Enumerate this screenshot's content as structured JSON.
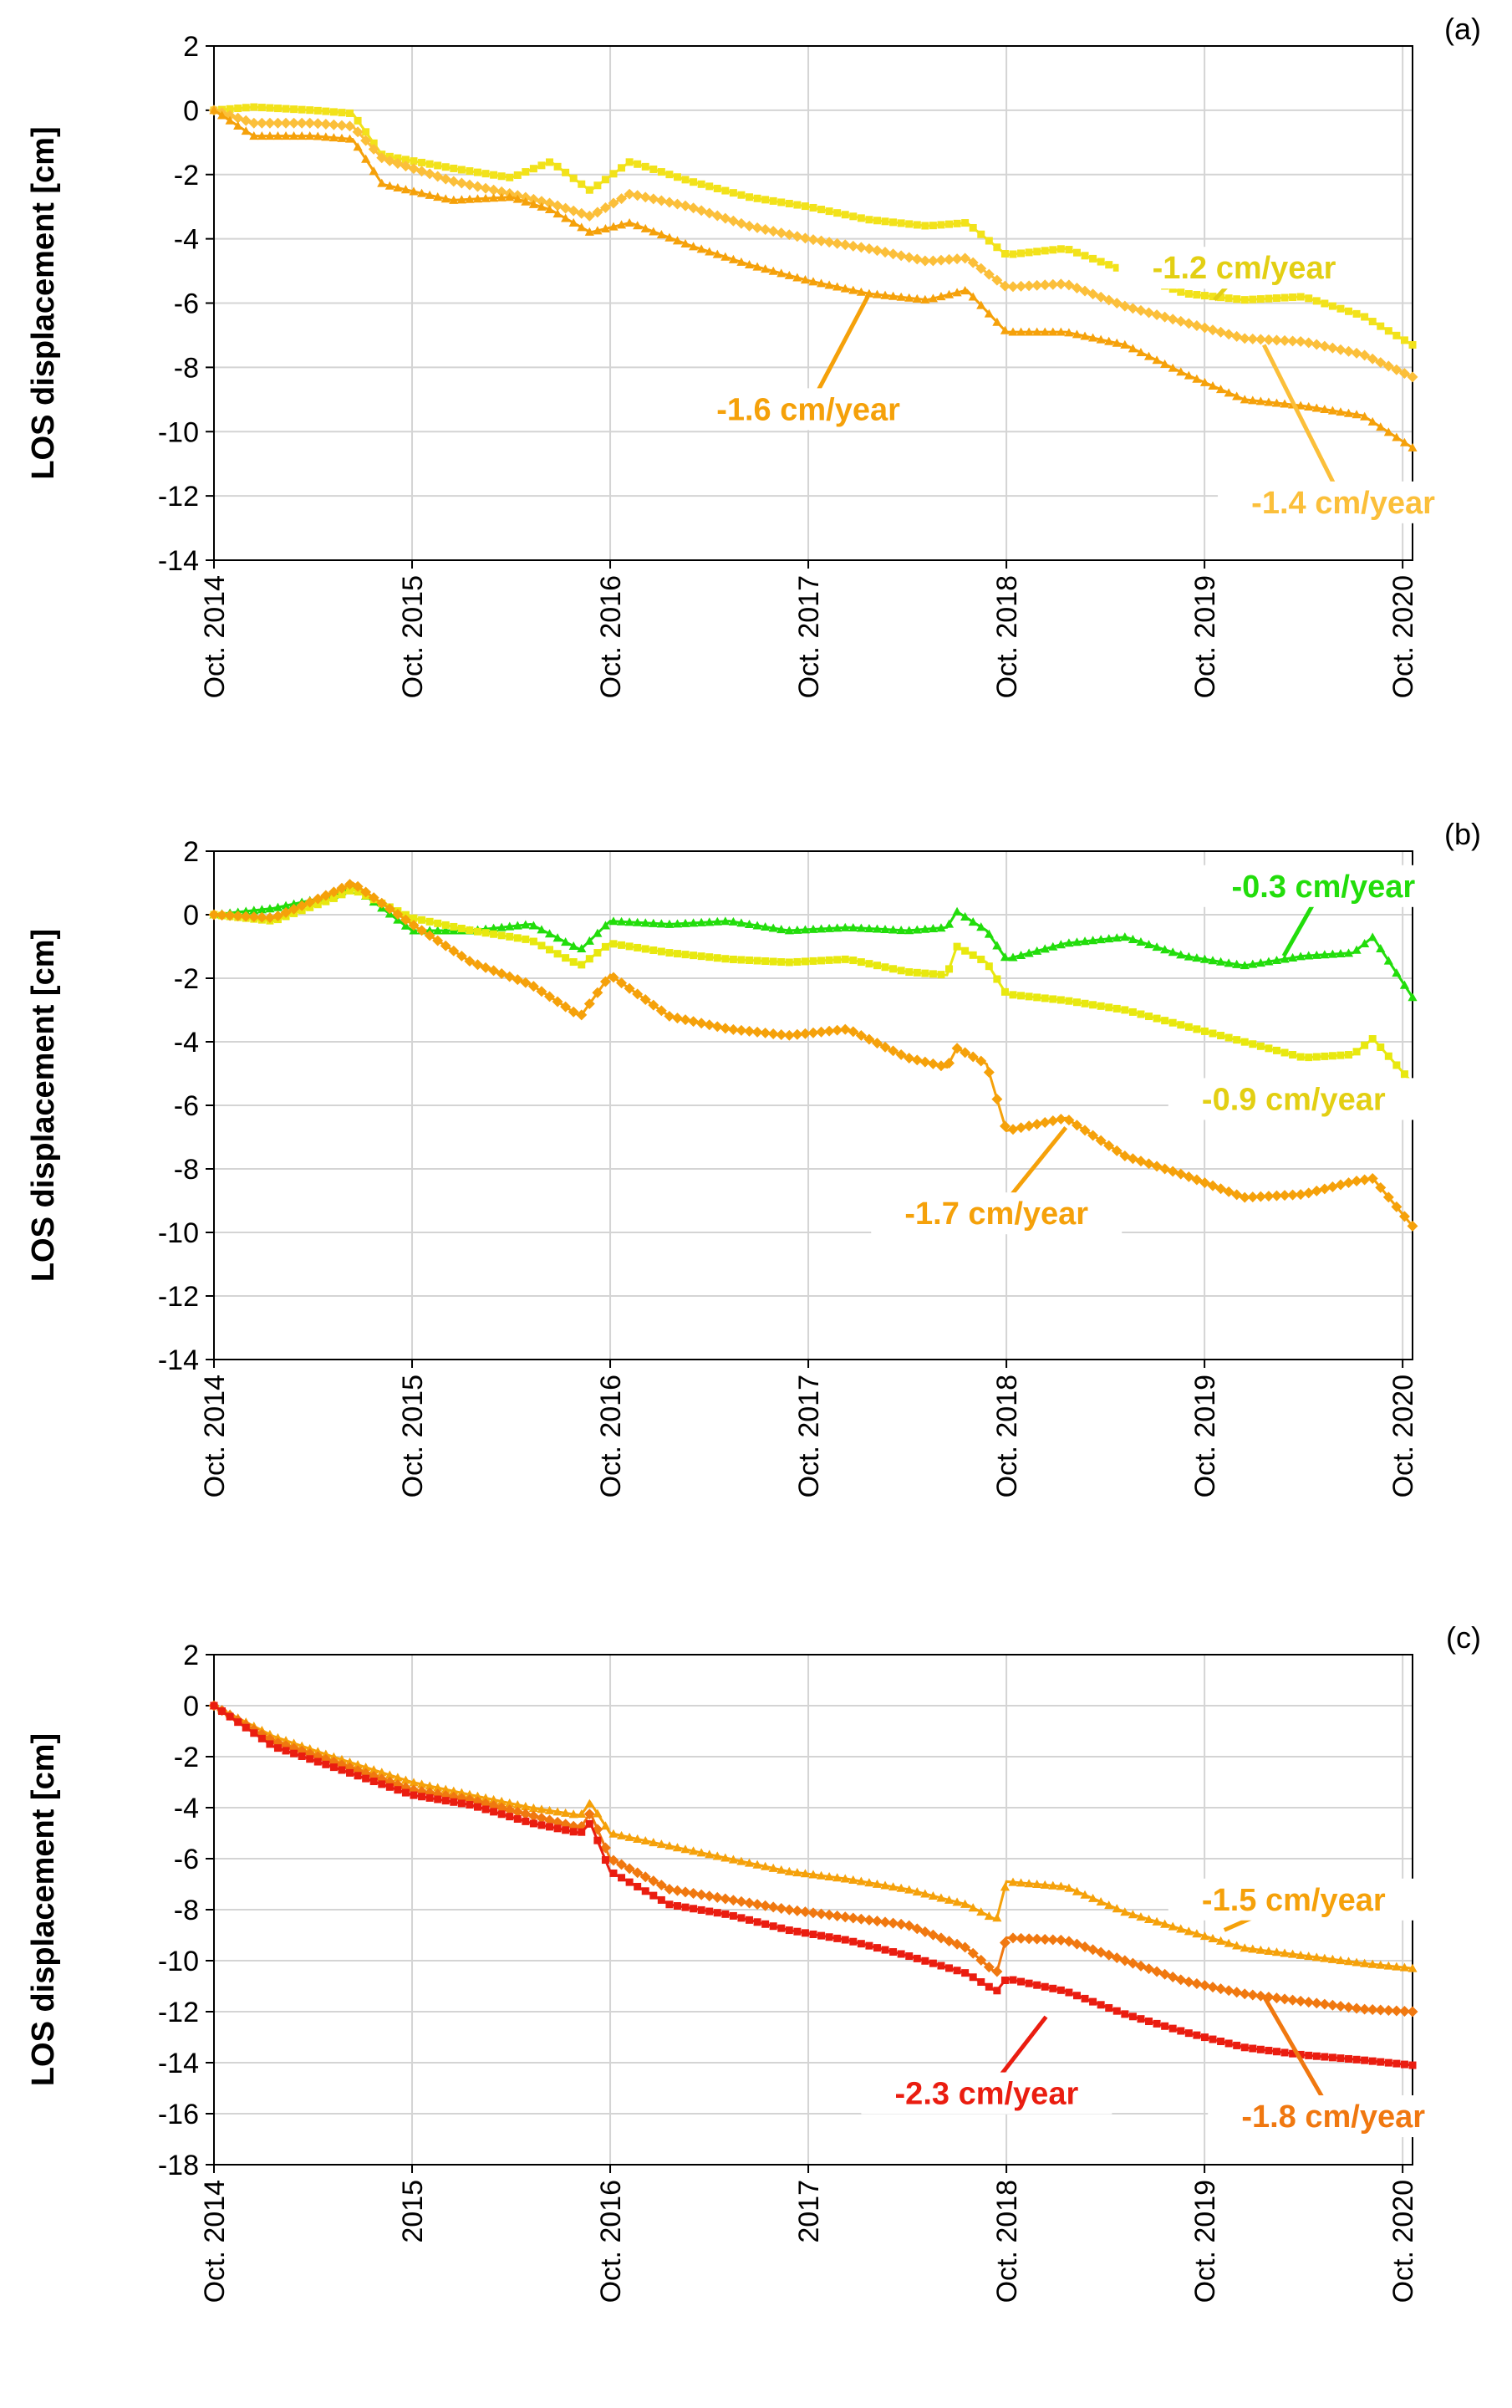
{
  "chart_data": [
    {
      "type": "line",
      "panel_label": "(a)",
      "ylabel": "LOS displacement [cm]",
      "xlabel": "",
      "ylim": [
        -14,
        2
      ],
      "ystep": 2,
      "xlim": [
        2014.0,
        2020.05
      ],
      "grid": true,
      "x_ticks": [
        {
          "value": 2014,
          "label": "Oct. 2014"
        },
        {
          "value": 2015,
          "label": "Oct. 2015"
        },
        {
          "value": 2016,
          "label": "Oct. 2016"
        },
        {
          "value": 2017,
          "label": "Oct. 2017"
        },
        {
          "value": 2018,
          "label": "Oct. 2018"
        },
        {
          "value": 2019,
          "label": "Oct. 2019"
        },
        {
          "value": 2020,
          "label": "Oct. 2020"
        }
      ],
      "series": [
        {
          "name": "-1.2 cm/year",
          "color": "#f2e21a",
          "marker": "square",
          "x": [
            2014.0,
            2014.2,
            2014.5,
            2014.7,
            2014.85,
            2015.2,
            2015.5,
            2015.7,
            2015.9,
            2016.1,
            2016.4,
            2016.7,
            2017.0,
            2017.3,
            2017.6,
            2017.8,
            2018.0,
            2018.3,
            2018.6,
            2018.9,
            2019.2,
            2019.5,
            2019.8,
            2020.05
          ],
          "values": [
            0.0,
            0.1,
            0.0,
            -0.1,
            -1.4,
            -1.8,
            -2.1,
            -1.6,
            -2.5,
            -1.6,
            -2.2,
            -2.7,
            -3.0,
            -3.4,
            -3.6,
            -3.5,
            -4.5,
            -4.3,
            -5.0,
            -5.7,
            -5.9,
            -5.8,
            -6.4,
            -7.3
          ]
        },
        {
          "name": "-1.4 cm/year",
          "color": "#fbbf3a",
          "marker": "diamond",
          "x": [
            2014.0,
            2014.2,
            2014.5,
            2014.7,
            2014.85,
            2015.2,
            2015.5,
            2015.7,
            2015.9,
            2016.1,
            2016.4,
            2016.7,
            2017.0,
            2017.3,
            2017.6,
            2017.8,
            2018.0,
            2018.3,
            2018.6,
            2018.9,
            2019.2,
            2019.5,
            2019.8,
            2020.05
          ],
          "values": [
            0.0,
            -0.4,
            -0.4,
            -0.5,
            -1.5,
            -2.2,
            -2.6,
            -2.9,
            -3.3,
            -2.6,
            -3.0,
            -3.6,
            -4.0,
            -4.3,
            -4.7,
            -4.6,
            -5.5,
            -5.4,
            -6.1,
            -6.6,
            -7.1,
            -7.2,
            -7.6,
            -8.3
          ]
        },
        {
          "name": "-1.6 cm/year",
          "color": "#f5a10a",
          "marker": "triangle",
          "x": [
            2014.0,
            2014.2,
            2014.5,
            2014.7,
            2014.85,
            2015.2,
            2015.5,
            2015.7,
            2015.9,
            2016.1,
            2016.4,
            2016.7,
            2017.0,
            2017.3,
            2017.6,
            2017.8,
            2018.0,
            2018.3,
            2018.6,
            2018.9,
            2019.2,
            2019.5,
            2019.8,
            2020.05
          ],
          "values": [
            0.0,
            -0.8,
            -0.8,
            -0.9,
            -2.3,
            -2.8,
            -2.7,
            -3.1,
            -3.8,
            -3.5,
            -4.2,
            -4.8,
            -5.3,
            -5.7,
            -5.9,
            -5.6,
            -6.9,
            -6.9,
            -7.3,
            -8.2,
            -9.0,
            -9.2,
            -9.5,
            -10.5
          ]
        }
      ],
      "annotations": [
        {
          "text": "-1.2 cm/year",
          "color": "#e3cf13",
          "x": 2019.2,
          "y": -4.9,
          "ax": 2019.05,
          "ay": -5.9
        },
        {
          "text": "-1.4 cm/year",
          "color": "#fbbf3a",
          "x": 2019.7,
          "y": -12.2,
          "ax": 2019.3,
          "ay": -7.3
        },
        {
          "text": "-1.6 cm/year",
          "color": "#f5a10a",
          "x": 2017.0,
          "y": -9.3,
          "ax": 2017.3,
          "ay": -5.8
        }
      ]
    },
    {
      "type": "line",
      "panel_label": "(b)",
      "ylabel": "LOS displacement [cm]",
      "xlabel": "",
      "ylim": [
        -14,
        2
      ],
      "ystep": 2,
      "xlim": [
        2014.0,
        2020.05
      ],
      "grid": true,
      "x_ticks": [
        {
          "value": 2014,
          "label": "Oct. 2014"
        },
        {
          "value": 2015,
          "label": "Oct. 2015"
        },
        {
          "value": 2016,
          "label": "Oct. 2016"
        },
        {
          "value": 2017,
          "label": "Oct. 2017"
        },
        {
          "value": 2018,
          "label": "Oct. 2018"
        },
        {
          "value": 2019,
          "label": "Oct. 2019"
        },
        {
          "value": 2020,
          "label": "Oct. 2020"
        }
      ],
      "series": [
        {
          "name": "-0.3 cm/year",
          "color": "#22dd0b",
          "marker": "triangle",
          "x": [
            2014.0,
            2014.3,
            2014.6,
            2014.7,
            2015.0,
            2015.3,
            2015.6,
            2015.85,
            2016.0,
            2016.3,
            2016.6,
            2016.9,
            2017.2,
            2017.5,
            2017.7,
            2017.75,
            2017.9,
            2018.0,
            2018.3,
            2018.6,
            2018.9,
            2019.2,
            2019.5,
            2019.75,
            2019.85,
            2020.05
          ],
          "values": [
            0.0,
            0.2,
            0.6,
            0.9,
            -0.5,
            -0.5,
            -0.3,
            -1.1,
            -0.2,
            -0.3,
            -0.2,
            -0.5,
            -0.4,
            -0.5,
            -0.4,
            0.1,
            -0.5,
            -1.4,
            -0.9,
            -0.7,
            -1.3,
            -1.6,
            -1.3,
            -1.2,
            -0.7,
            -2.6
          ]
        },
        {
          "name": "-0.9 cm/year",
          "color": "#e8e80f",
          "marker": "square",
          "x": [
            2014.0,
            2014.3,
            2014.6,
            2014.7,
            2015.0,
            2015.3,
            2015.6,
            2015.85,
            2016.0,
            2016.3,
            2016.6,
            2016.9,
            2017.2,
            2017.5,
            2017.7,
            2017.75,
            2017.9,
            2018.0,
            2018.3,
            2018.6,
            2018.9,
            2019.2,
            2019.5,
            2019.75,
            2019.85,
            2020.05
          ],
          "values": [
            0.0,
            -0.2,
            0.5,
            0.8,
            -0.1,
            -0.5,
            -0.8,
            -1.6,
            -0.9,
            -1.2,
            -1.4,
            -1.5,
            -1.4,
            -1.8,
            -1.9,
            -1.0,
            -1.5,
            -2.5,
            -2.7,
            -3.0,
            -3.5,
            -4.0,
            -4.5,
            -4.4,
            -3.9,
            -5.3
          ]
        },
        {
          "name": "-1.7 cm/year",
          "color": "#f5a10a",
          "marker": "diamond",
          "x": [
            2014.0,
            2014.3,
            2014.6,
            2014.7,
            2015.0,
            2015.3,
            2015.6,
            2015.85,
            2016.0,
            2016.3,
            2016.6,
            2016.9,
            2017.2,
            2017.5,
            2017.7,
            2017.75,
            2017.9,
            2018.0,
            2018.3,
            2018.6,
            2018.9,
            2019.2,
            2019.5,
            2019.75,
            2019.85,
            2020.05
          ],
          "values": [
            0.0,
            -0.1,
            0.7,
            1.0,
            -0.3,
            -1.5,
            -2.2,
            -3.2,
            -1.9,
            -3.2,
            -3.6,
            -3.8,
            -3.6,
            -4.5,
            -4.8,
            -4.2,
            -4.7,
            -6.8,
            -6.4,
            -7.6,
            -8.2,
            -8.9,
            -8.8,
            -8.4,
            -8.3,
            -9.8
          ]
        }
      ],
      "annotations": [
        {
          "text": "-0.3 cm/year",
          "color": "#22dd0b",
          "x": 2019.6,
          "y": 0.9,
          "ax": 2019.4,
          "ay": -1.3
        },
        {
          "text": "-0.9 cm/year",
          "color": "#e3cf13",
          "x": 2019.45,
          "y": -5.8,
          "ax": null,
          "ay": null
        },
        {
          "text": "-1.7 cm/year",
          "color": "#f5a10a",
          "x": 2017.95,
          "y": -9.4,
          "ax": 2018.3,
          "ay": -6.7
        }
      ]
    },
    {
      "type": "line",
      "panel_label": "(c)",
      "ylabel": "LOS displacement [cm]",
      "xlabel": "",
      "ylim": [
        -18,
        2
      ],
      "ystep": 2,
      "xlim": [
        2014.0,
        2020.05
      ],
      "grid": true,
      "x_ticks": [
        {
          "value": 2014,
          "label": "Oct. 2014"
        },
        {
          "value": 2015,
          "label": "2015"
        },
        {
          "value": 2016,
          "label": "Oct. 2016"
        },
        {
          "value": 2017,
          "label": "2017"
        },
        {
          "value": 2018,
          "label": "Oct. 2018"
        },
        {
          "value": 2019,
          "label": "Oct. 2019"
        },
        {
          "value": 2020,
          "label": "Oct. 2020"
        }
      ],
      "series": [
        {
          "name": "-1.5 cm/year",
          "color": "#f5a10a",
          "marker": "triangle",
          "x": [
            2014.0,
            2014.3,
            2014.6,
            2015.0,
            2015.3,
            2015.6,
            2015.85,
            2015.9,
            2016.0,
            2016.3,
            2016.6,
            2016.9,
            2017.2,
            2017.5,
            2017.8,
            2017.95,
            2018.0,
            2018.3,
            2018.6,
            2018.9,
            2019.2,
            2019.5,
            2019.8,
            2020.05
          ],
          "values": [
            0.0,
            -1.2,
            -2.0,
            -3.0,
            -3.5,
            -4.0,
            -4.3,
            -3.8,
            -5.0,
            -5.5,
            -6.0,
            -6.5,
            -6.8,
            -7.2,
            -7.8,
            -8.4,
            -6.9,
            -7.1,
            -8.1,
            -8.8,
            -9.5,
            -9.8,
            -10.1,
            -10.3
          ]
        },
        {
          "name": "-1.8 cm/year",
          "color": "#f07810",
          "marker": "diamond",
          "x": [
            2014.0,
            2014.3,
            2014.6,
            2015.0,
            2015.3,
            2015.6,
            2015.85,
            2015.9,
            2016.0,
            2016.3,
            2016.6,
            2016.9,
            2017.2,
            2017.5,
            2017.8,
            2017.95,
            2018.0,
            2018.3,
            2018.6,
            2018.9,
            2019.2,
            2019.5,
            2019.8,
            2020.05
          ],
          "values": [
            0.0,
            -1.4,
            -2.2,
            -3.3,
            -3.7,
            -4.3,
            -4.8,
            -4.2,
            -6.0,
            -7.2,
            -7.6,
            -8.0,
            -8.3,
            -8.6,
            -9.5,
            -10.5,
            -9.1,
            -9.2,
            -10.0,
            -10.8,
            -11.3,
            -11.6,
            -11.9,
            -12.0
          ]
        },
        {
          "name": "-2.3 cm/year",
          "color": "#ea1d10",
          "marker": "square",
          "x": [
            2014.0,
            2014.3,
            2014.6,
            2015.0,
            2015.3,
            2015.6,
            2015.85,
            2015.9,
            2016.0,
            2016.3,
            2016.6,
            2016.9,
            2017.2,
            2017.5,
            2017.8,
            2017.95,
            2018.0,
            2018.3,
            2018.6,
            2018.9,
            2019.2,
            2019.5,
            2019.8,
            2020.05
          ],
          "values": [
            0.0,
            -1.6,
            -2.4,
            -3.5,
            -3.9,
            -4.6,
            -5.0,
            -4.6,
            -6.5,
            -7.8,
            -8.2,
            -8.8,
            -9.2,
            -9.8,
            -10.5,
            -11.2,
            -10.7,
            -11.2,
            -12.1,
            -12.8,
            -13.4,
            -13.7,
            -13.9,
            -14.1
          ]
        }
      ],
      "annotations": [
        {
          "text": "-1.5 cm/year",
          "color": "#f5a10a",
          "x": 2019.45,
          "y": -7.6,
          "ax": 2019.1,
          "ay": -8.8
        },
        {
          "text": "-1.8 cm/year",
          "color": "#f07810",
          "x": 2019.65,
          "y": -16.1,
          "ax": 2019.3,
          "ay": -11.4
        },
        {
          "text": "-2.3 cm/year",
          "color": "#ea1d10",
          "x": 2017.9,
          "y": -15.2,
          "ax": 2018.2,
          "ay": -12.2
        }
      ]
    }
  ]
}
